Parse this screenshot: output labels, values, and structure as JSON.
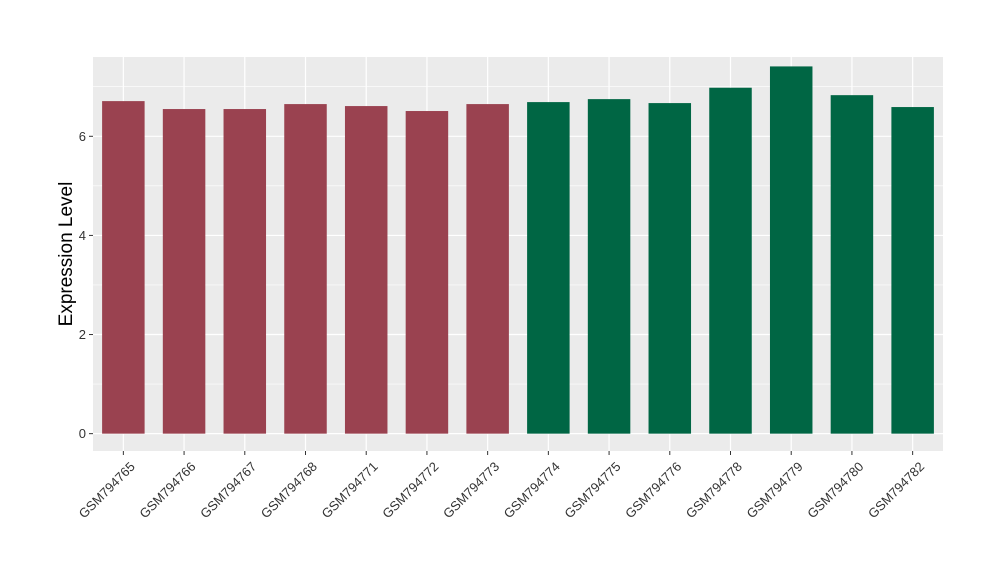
{
  "chart_data": {
    "type": "bar",
    "title": "",
    "xlabel": "",
    "ylabel": "Expression Level",
    "ylim": [
      -0.35,
      7.6
    ],
    "yticks": [
      0,
      2,
      4,
      6
    ],
    "grid": true,
    "legend": "none",
    "categories": [
      "GSM794765",
      "GSM794766",
      "GSM794767",
      "GSM794768",
      "GSM794771",
      "GSM794772",
      "GSM794773",
      "GSM794774",
      "GSM794775",
      "GSM794776",
      "GSM794778",
      "GSM794779",
      "GSM794780",
      "GSM794782"
    ],
    "values": [
      6.71,
      6.55,
      6.55,
      6.65,
      6.61,
      6.51,
      6.65,
      6.69,
      6.75,
      6.67,
      6.98,
      7.41,
      6.83,
      6.59
    ],
    "groups": [
      0,
      0,
      0,
      0,
      0,
      0,
      0,
      1,
      1,
      1,
      1,
      1,
      1,
      1
    ],
    "colors": [
      "#9a4250",
      "#006644"
    ],
    "panel_background": "#ebebeb",
    "grid_color": "#ffffff"
  }
}
